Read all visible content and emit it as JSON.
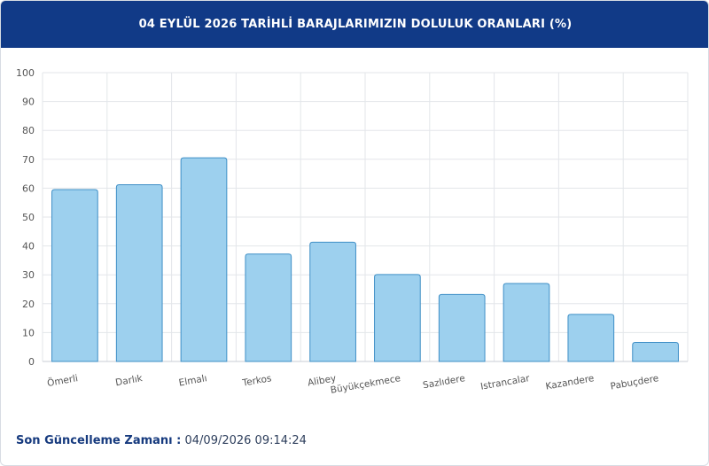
{
  "header": {
    "title": "04 EYLÜL 2026 TARİHLİ BARAJLARIMIZIN DOLULUK ORANLARI (%)"
  },
  "footer": {
    "label": "Son Güncelleme Zamanı :",
    "value": "04/09/2026 09:14:24"
  },
  "colors": {
    "header_bg": "#113a87",
    "bar_fill": "#9dd0ee",
    "bar_stroke": "#3f8fc6",
    "grid": "#e3e6ea"
  },
  "chart_data": {
    "type": "bar",
    "title": "04 EYLÜL 2026 TARİHLİ BARAJLARIMIZIN DOLULUK ORANLARI (%)",
    "xlabel": "",
    "ylabel": "",
    "ylim": [
      0,
      100
    ],
    "yticks": [
      0,
      10,
      20,
      30,
      40,
      50,
      60,
      70,
      80,
      90,
      100
    ],
    "grid": true,
    "categories": [
      "Ömerli",
      "Darlık",
      "Elmalı",
      "Terkos",
      "Alibey",
      "Büyükçekmece",
      "Sazlıdere",
      "Istrancalar",
      "Kazandere",
      "Pabuçdere"
    ],
    "values": [
      59.5,
      61.2,
      70.5,
      37.2,
      41.3,
      30.1,
      23.2,
      27.0,
      16.3,
      6.6
    ]
  }
}
